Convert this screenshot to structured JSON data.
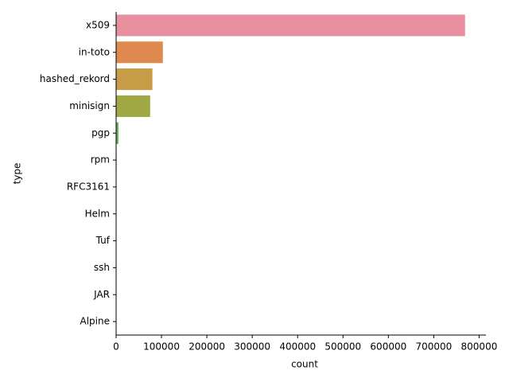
{
  "chart_data": {
    "type": "barh",
    "xlabel": "count",
    "ylabel": "type",
    "categories": [
      "x509",
      "in-toto",
      "hashed_rekord",
      "minisign",
      "pgp",
      "rpm",
      "RFC3161",
      "Helm",
      "Tuf",
      "ssh",
      "JAR",
      "Alpine"
    ],
    "values": [
      769000,
      103000,
      80000,
      75000,
      5000,
      1000,
      600,
      300,
      150,
      80,
      30,
      10
    ],
    "colors": [
      "#e8909f",
      "#e0894f",
      "#c69c47",
      "#9fa843",
      "#5fae52",
      "#4cae88",
      "#4eaaa0",
      "#51a7b6",
      "#5da2cf",
      "#8c99dc",
      "#ba8cdb",
      "#da80c4"
    ],
    "xlim": [
      0,
      815000
    ],
    "xticks": [
      0,
      100000,
      200000,
      300000,
      400000,
      500000,
      600000,
      700000,
      800000
    ]
  }
}
